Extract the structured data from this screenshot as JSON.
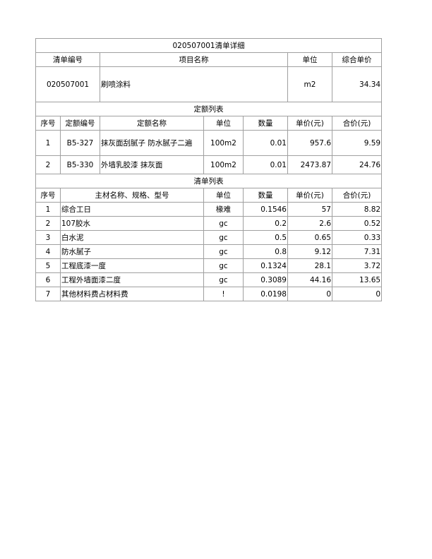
{
  "title": "020507001清单详细",
  "bill_header": {
    "code": "清单编号",
    "name": "项目名称",
    "unit": "单位",
    "price": "综合单价"
  },
  "bill": {
    "code": "020507001",
    "name": "刷喷涂料",
    "unit": "m2",
    "price": "34.34"
  },
  "quota_section": "定额列表",
  "quota_header": {
    "no": "序号",
    "code": "定额编号",
    "name": "定额名称",
    "unit": "单位",
    "qty": "数量",
    "price": "单价(元)",
    "total": "合价(元)"
  },
  "quota_rows": [
    {
      "no": "1",
      "code": "B5-327",
      "name": "抹灰面刮腻子 防水腻子二遍",
      "unit": "100m2",
      "qty": "0.01",
      "price": "957.6",
      "total": "9.59"
    },
    {
      "no": "2",
      "code": "B5-330",
      "name": "外墙乳胶漆 抹灰面",
      "unit": "100m2",
      "qty": "0.01",
      "price": "2473.87",
      "total": "24.76"
    }
  ],
  "list_section": "清单列表",
  "list_header": {
    "no": "序号",
    "name": "主材名称、规格、型号",
    "unit": "单位",
    "qty": "数量",
    "price": "单价(元)",
    "total": "合价(元)"
  },
  "list_rows": [
    {
      "no": "1",
      "name": "综合工日",
      "unit": "椽难",
      "qty": "0.1546",
      "price": "57",
      "total": "8.82"
    },
    {
      "no": "2",
      "name": "107胶水",
      "unit": "gc",
      "qty": "0.2",
      "price": "2.6",
      "total": "0.52"
    },
    {
      "no": "3",
      "name": "白水泥",
      "unit": "gc",
      "qty": "0.5",
      "price": "0.65",
      "total": "0.33"
    },
    {
      "no": "4",
      "name": "防水腻子",
      "unit": "gc",
      "qty": "0.8",
      "price": "9.12",
      "total": "7.31"
    },
    {
      "no": "5",
      "name": "工程底漆一度",
      "unit": "gc",
      "qty": "0.1324",
      "price": "28.1",
      "total": "3.72"
    },
    {
      "no": "6",
      "name": "工程外墙面漆二度",
      "unit": "gc",
      "qty": "0.3089",
      "price": "44.16",
      "total": "13.65"
    },
    {
      "no": "7",
      "name": "其他材料费占材料费",
      "unit": "!",
      "qty": "0.0198",
      "price": "0",
      "total": "0"
    }
  ]
}
